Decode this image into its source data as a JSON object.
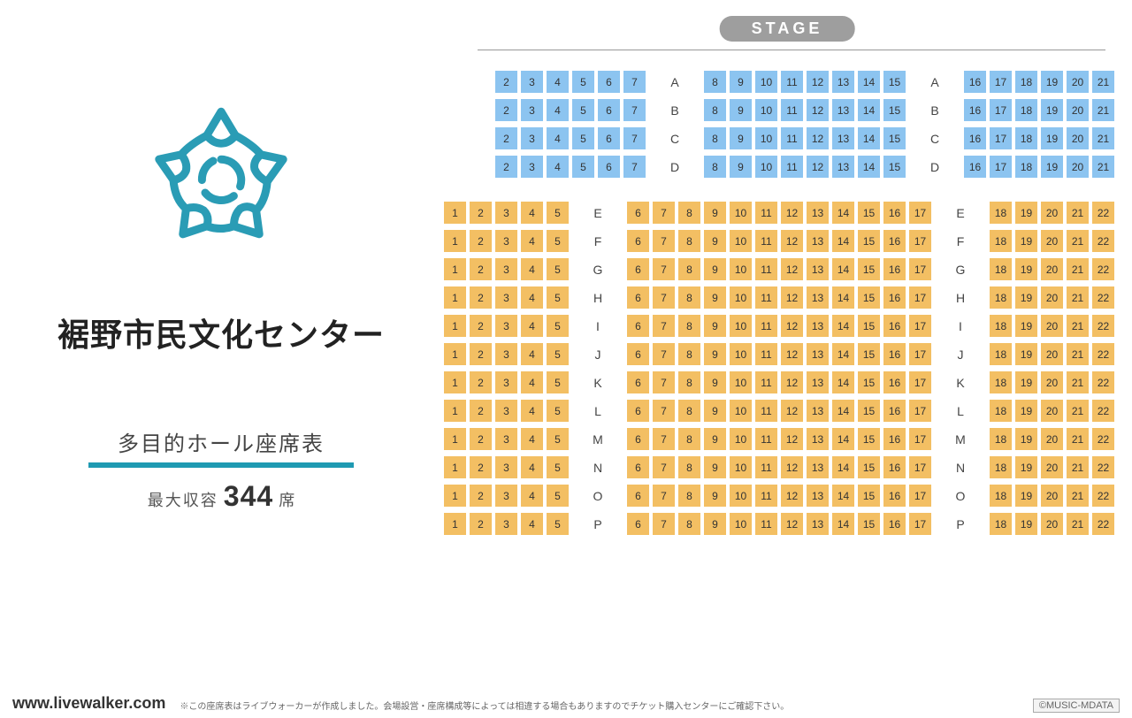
{
  "venue_title": "裾野市民文化センター",
  "hall_name": "多目的ホール座席表",
  "capacity_label": "最大収容",
  "capacity_number": "344",
  "capacity_suffix": "席",
  "stage_label": "STAGE",
  "site_url": "www.livewalker.com",
  "disclaimer": "※この座席表はライブウォーカーが作成しました。会場設営・座席構成等によっては相違する場合もありますのでチケット購入センターにご確認下さい。",
  "copyright": "©MUSIC-MDATA",
  "colors": {
    "blue_seat": "#8cc4f0",
    "orange_seat": "#f3bf63",
    "accent": "#1f9ab2",
    "stage_badge": "#9e9e9e",
    "logo": "#2a9cb5"
  },
  "logo_color": "#2a9cb5",
  "seating": {
    "blue_section": {
      "rows": [
        "A",
        "B",
        "C",
        "D"
      ],
      "left_seats": [
        2,
        3,
        4,
        5,
        6,
        7
      ],
      "center_seats": [
        8,
        9,
        10,
        11,
        12,
        13,
        14,
        15
      ],
      "right_seats": [
        16,
        17,
        18,
        19,
        20,
        21
      ],
      "seat_color": "#8cc4f0"
    },
    "orange_section": {
      "rows": [
        "E",
        "F",
        "G",
        "H",
        "I",
        "J",
        "K",
        "L",
        "M",
        "N",
        "O",
        "P"
      ],
      "left_seats": [
        1,
        2,
        3,
        4,
        5
      ],
      "center_seats": [
        6,
        7,
        8,
        9,
        10,
        11,
        12,
        13,
        14,
        15,
        16,
        17
      ],
      "right_seats": [
        18,
        19,
        20,
        21,
        22
      ],
      "seat_color": "#f3bf63"
    }
  }
}
